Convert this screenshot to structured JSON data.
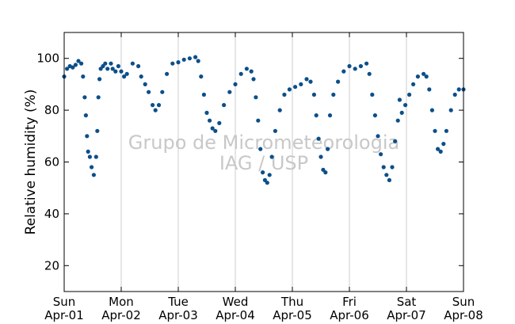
{
  "chart_data": {
    "type": "scatter",
    "ylabel": "Relative humidity (%)",
    "ylim": [
      10,
      110
    ],
    "yticks": [
      20,
      40,
      60,
      80,
      100
    ],
    "xlim": [
      0,
      7
    ],
    "xticks": [
      {
        "day": "Sun",
        "date": "Apr-01"
      },
      {
        "day": "Mon",
        "date": "Apr-02"
      },
      {
        "day": "Tue",
        "date": "Apr-03"
      },
      {
        "day": "Wed",
        "date": "Apr-04"
      },
      {
        "day": "Thu",
        "date": "Apr-05"
      },
      {
        "day": "Fri",
        "date": "Apr-06"
      },
      {
        "day": "Sat",
        "date": "Apr-07"
      },
      {
        "day": "Sun",
        "date": "Apr-08"
      }
    ],
    "grid": "vertical",
    "marker_color": "#0b4f8a",
    "watermark": [
      "Grupo de Micrometeorologia",
      "IAG / USP"
    ],
    "series": [
      {
        "values": [
          [
            0.0,
            93
          ],
          [
            0.05,
            96
          ],
          [
            0.1,
            97
          ],
          [
            0.15,
            96.5
          ],
          [
            0.2,
            97.5
          ],
          [
            0.25,
            99
          ],
          [
            0.3,
            98
          ],
          [
            0.33,
            93
          ],
          [
            0.36,
            85
          ],
          [
            0.38,
            78
          ],
          [
            0.4,
            70
          ],
          [
            0.42,
            64
          ],
          [
            0.45,
            62
          ],
          [
            0.48,
            58
          ],
          [
            0.52,
            55
          ],
          [
            0.56,
            62
          ],
          [
            0.58,
            72
          ],
          [
            0.6,
            85
          ],
          [
            0.62,
            92
          ],
          [
            0.64,
            96
          ],
          [
            0.68,
            97
          ],
          [
            0.72,
            98
          ],
          [
            0.76,
            96
          ],
          [
            0.82,
            98
          ],
          [
            0.85,
            96
          ],
          [
            0.9,
            95
          ],
          [
            0.95,
            97
          ],
          [
            1.0,
            95
          ],
          [
            1.05,
            93
          ],
          [
            1.1,
            94
          ],
          [
            1.2,
            98
          ],
          [
            1.3,
            97
          ],
          [
            1.35,
            93
          ],
          [
            1.42,
            90
          ],
          [
            1.48,
            87
          ],
          [
            1.55,
            82
          ],
          [
            1.6,
            80
          ],
          [
            1.66,
            82
          ],
          [
            1.72,
            87
          ],
          [
            1.8,
            94
          ],
          [
            1.9,
            98
          ],
          [
            2.0,
            98.5
          ],
          [
            2.1,
            99.5
          ],
          [
            2.2,
            100
          ],
          [
            2.3,
            100.5
          ],
          [
            2.35,
            99
          ],
          [
            2.4,
            93
          ],
          [
            2.45,
            86
          ],
          [
            2.5,
            79
          ],
          [
            2.55,
            76
          ],
          [
            2.6,
            73
          ],
          [
            2.65,
            72
          ],
          [
            2.72,
            75
          ],
          [
            2.8,
            82
          ],
          [
            2.9,
            87
          ],
          [
            3.0,
            90
          ],
          [
            3.1,
            94
          ],
          [
            3.2,
            96
          ],
          [
            3.28,
            95
          ],
          [
            3.32,
            92
          ],
          [
            3.36,
            85
          ],
          [
            3.4,
            76
          ],
          [
            3.44,
            65
          ],
          [
            3.48,
            56
          ],
          [
            3.52,
            53
          ],
          [
            3.56,
            52
          ],
          [
            3.6,
            55
          ],
          [
            3.64,
            62
          ],
          [
            3.7,
            72
          ],
          [
            3.78,
            80
          ],
          [
            3.86,
            86
          ],
          [
            3.95,
            88
          ],
          [
            4.05,
            89
          ],
          [
            4.15,
            90
          ],
          [
            4.25,
            92
          ],
          [
            4.32,
            91
          ],
          [
            4.38,
            86
          ],
          [
            4.42,
            78
          ],
          [
            4.46,
            69
          ],
          [
            4.5,
            62
          ],
          [
            4.54,
            57
          ],
          [
            4.58,
            56
          ],
          [
            4.62,
            65
          ],
          [
            4.66,
            78
          ],
          [
            4.72,
            86
          ],
          [
            4.8,
            91
          ],
          [
            4.9,
            95
          ],
          [
            5.0,
            97
          ],
          [
            5.1,
            96
          ],
          [
            5.2,
            97
          ],
          [
            5.3,
            98
          ],
          [
            5.35,
            94
          ],
          [
            5.4,
            86
          ],
          [
            5.45,
            78
          ],
          [
            5.5,
            70
          ],
          [
            5.55,
            63
          ],
          [
            5.6,
            58
          ],
          [
            5.65,
            55
          ],
          [
            5.7,
            53
          ],
          [
            5.75,
            58
          ],
          [
            5.8,
            68
          ],
          [
            5.85,
            76
          ],
          [
            5.88,
            84
          ],
          [
            5.92,
            79
          ],
          [
            5.98,
            82
          ],
          [
            6.05,
            86
          ],
          [
            6.12,
            90
          ],
          [
            6.2,
            93
          ],
          [
            6.3,
            94
          ],
          [
            6.35,
            93
          ],
          [
            6.4,
            88
          ],
          [
            6.45,
            80
          ],
          [
            6.5,
            72
          ],
          [
            6.55,
            65
          ],
          [
            6.6,
            64
          ],
          [
            6.65,
            67
          ],
          [
            6.7,
            72
          ],
          [
            6.78,
            80
          ],
          [
            6.85,
            86
          ],
          [
            6.92,
            88
          ],
          [
            7.0,
            88
          ]
        ]
      }
    ]
  }
}
